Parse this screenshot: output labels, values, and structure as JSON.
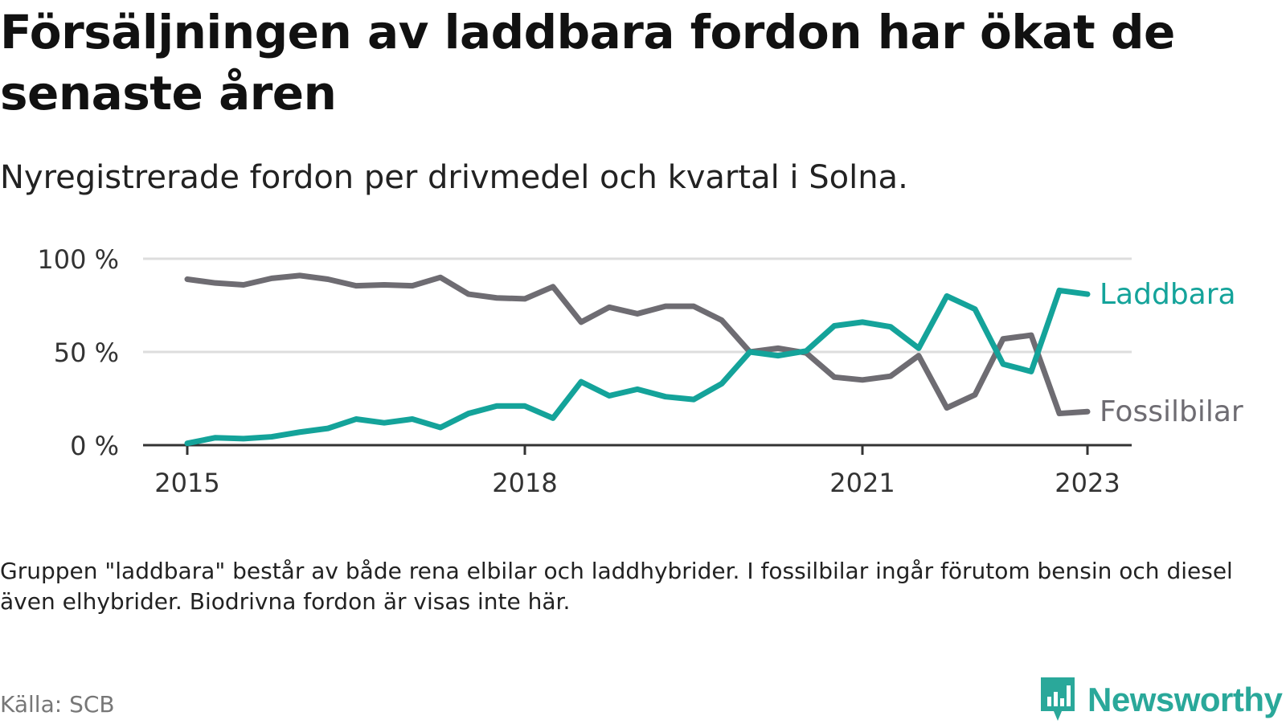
{
  "title": "Försäljningen av laddbara fordon har ökat de senaste åren",
  "subtitle": "Nyregistrerade fordon per drivmedel och kvartal i Solna.",
  "note": "Gruppen \"laddbara\" består av både rena elbilar och laddhybrider. I fossilbilar ingår förutom bensin och diesel även elhybrider. Biodrivna fordon är visas inte här.",
  "source": "Källa: SCB",
  "brand": "Newsworthy",
  "colors": {
    "laddbara": "#14a39a",
    "fossil": "#6e6c72",
    "grid": "#dddddd",
    "axis": "#333333"
  },
  "chart_data": {
    "type": "line",
    "title": "Försäljningen av laddbara fordon har ökat de senaste åren",
    "xlabel": "",
    "ylabel": "",
    "x_ticks": [
      "2015",
      "2018",
      "2021",
      "2023"
    ],
    "y_ticks": [
      "0 %",
      "50 %",
      "100 %"
    ],
    "ylim": [
      0,
      100
    ],
    "x": [
      "2015 Q1",
      "2015 Q2",
      "2015 Q3",
      "2015 Q4",
      "2016 Q1",
      "2016 Q2",
      "2016 Q3",
      "2016 Q4",
      "2017 Q1",
      "2017 Q2",
      "2017 Q3",
      "2017 Q4",
      "2018 Q1",
      "2018 Q2",
      "2018 Q3",
      "2018 Q4",
      "2019 Q1",
      "2019 Q2",
      "2019 Q3",
      "2019 Q4",
      "2020 Q1",
      "2020 Q2",
      "2020 Q3",
      "2020 Q4",
      "2021 Q1",
      "2021 Q2",
      "2021 Q3",
      "2021 Q4",
      "2022 Q1",
      "2022 Q2",
      "2022 Q3",
      "2022 Q4",
      "2023 Q1"
    ],
    "series": [
      {
        "name": "Laddbara",
        "color": "#14a39a",
        "values": [
          1,
          4,
          3.5,
          4.5,
          7,
          9,
          14,
          12,
          14,
          9.5,
          17,
          21,
          21,
          14.5,
          34,
          26.5,
          30,
          26,
          24.5,
          33,
          50,
          48,
          50.5,
          64,
          66,
          63.5,
          52,
          80,
          73,
          43.5,
          39.5,
          83,
          81
        ]
      },
      {
        "name": "Fossilbilar",
        "color": "#6e6c72",
        "values": [
          89,
          87,
          86,
          89.5,
          91,
          89,
          85.5,
          86,
          85.5,
          90,
          81,
          79,
          78.5,
          85,
          66,
          74,
          70.5,
          74.5,
          74.5,
          67,
          50,
          52,
          49.5,
          36.5,
          35,
          37,
          48,
          20,
          27,
          57,
          59,
          17,
          18
        ]
      }
    ]
  }
}
